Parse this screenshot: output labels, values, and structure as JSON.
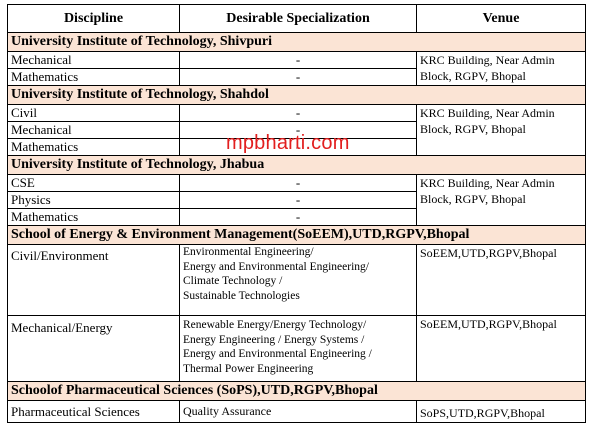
{
  "headers": {
    "discipline": "Discipline",
    "specialization": "Desirable Specialization",
    "venue": "Venue"
  },
  "sections": [
    {
      "title": "University Institute of Technology, Shivpuri",
      "rows": [
        {
          "discipline": "Mechanical",
          "spec": "-"
        },
        {
          "discipline": "Mathematics",
          "spec": "-"
        }
      ],
      "venue": "KRC Building, Near Admin Block, RGPV, Bhopal"
    },
    {
      "title": "University Institute of Technology, Shahdol",
      "rows": [
        {
          "discipline": "Civil",
          "spec": "-"
        },
        {
          "discipline": "Mechanical",
          "spec": "-"
        },
        {
          "discipline": "Mathematics",
          "spec": "-"
        }
      ],
      "venue": "KRC Building, Near Admin Block, RGPV, Bhopal"
    },
    {
      "title": "University Institute of Technology, Jhabua",
      "rows": [
        {
          "discipline": "CSE",
          "spec": "-"
        },
        {
          "discipline": "Physics",
          "spec": "-"
        },
        {
          "discipline": "Mathematics",
          "spec": "-"
        }
      ],
      "venue": "KRC Building, Near Admin Block, RGPV, Bhopal"
    },
    {
      "title": "School of Energy & Environment Management(SoEEM),UTD,RGPV,Bhopal",
      "rows": [
        {
          "discipline": "Civil/Environment",
          "spec_lines": [
            "Environmental Engineering/",
            "Energy and Environmental Engineering/",
            "Climate Technology /",
            "Sustainable Technologies"
          ],
          "venue": "SoEEM,UTD,RGPV,Bhopal"
        },
        {
          "discipline": "Mechanical/Energy",
          "spec_lines": [
            "Renewable Energy/Energy Technology/",
            "Energy Engineering / Energy Systems /",
            "Energy and Environmental Engineering /",
            "Thermal Power Engineering"
          ],
          "venue": "SoEEM,UTD,RGPV,Bhopal"
        }
      ]
    },
    {
      "title": "Schoolof Pharmaceutical Sciences (SoPS),UTD,RGPV,Bhopal",
      "rows": [
        {
          "discipline": "Pharmaceutical Sciences",
          "spec": "Quality Assurance",
          "venue": "SoPS,UTD,RGPV,Bhopal"
        }
      ]
    }
  ],
  "watermark": "mpbharti.com"
}
